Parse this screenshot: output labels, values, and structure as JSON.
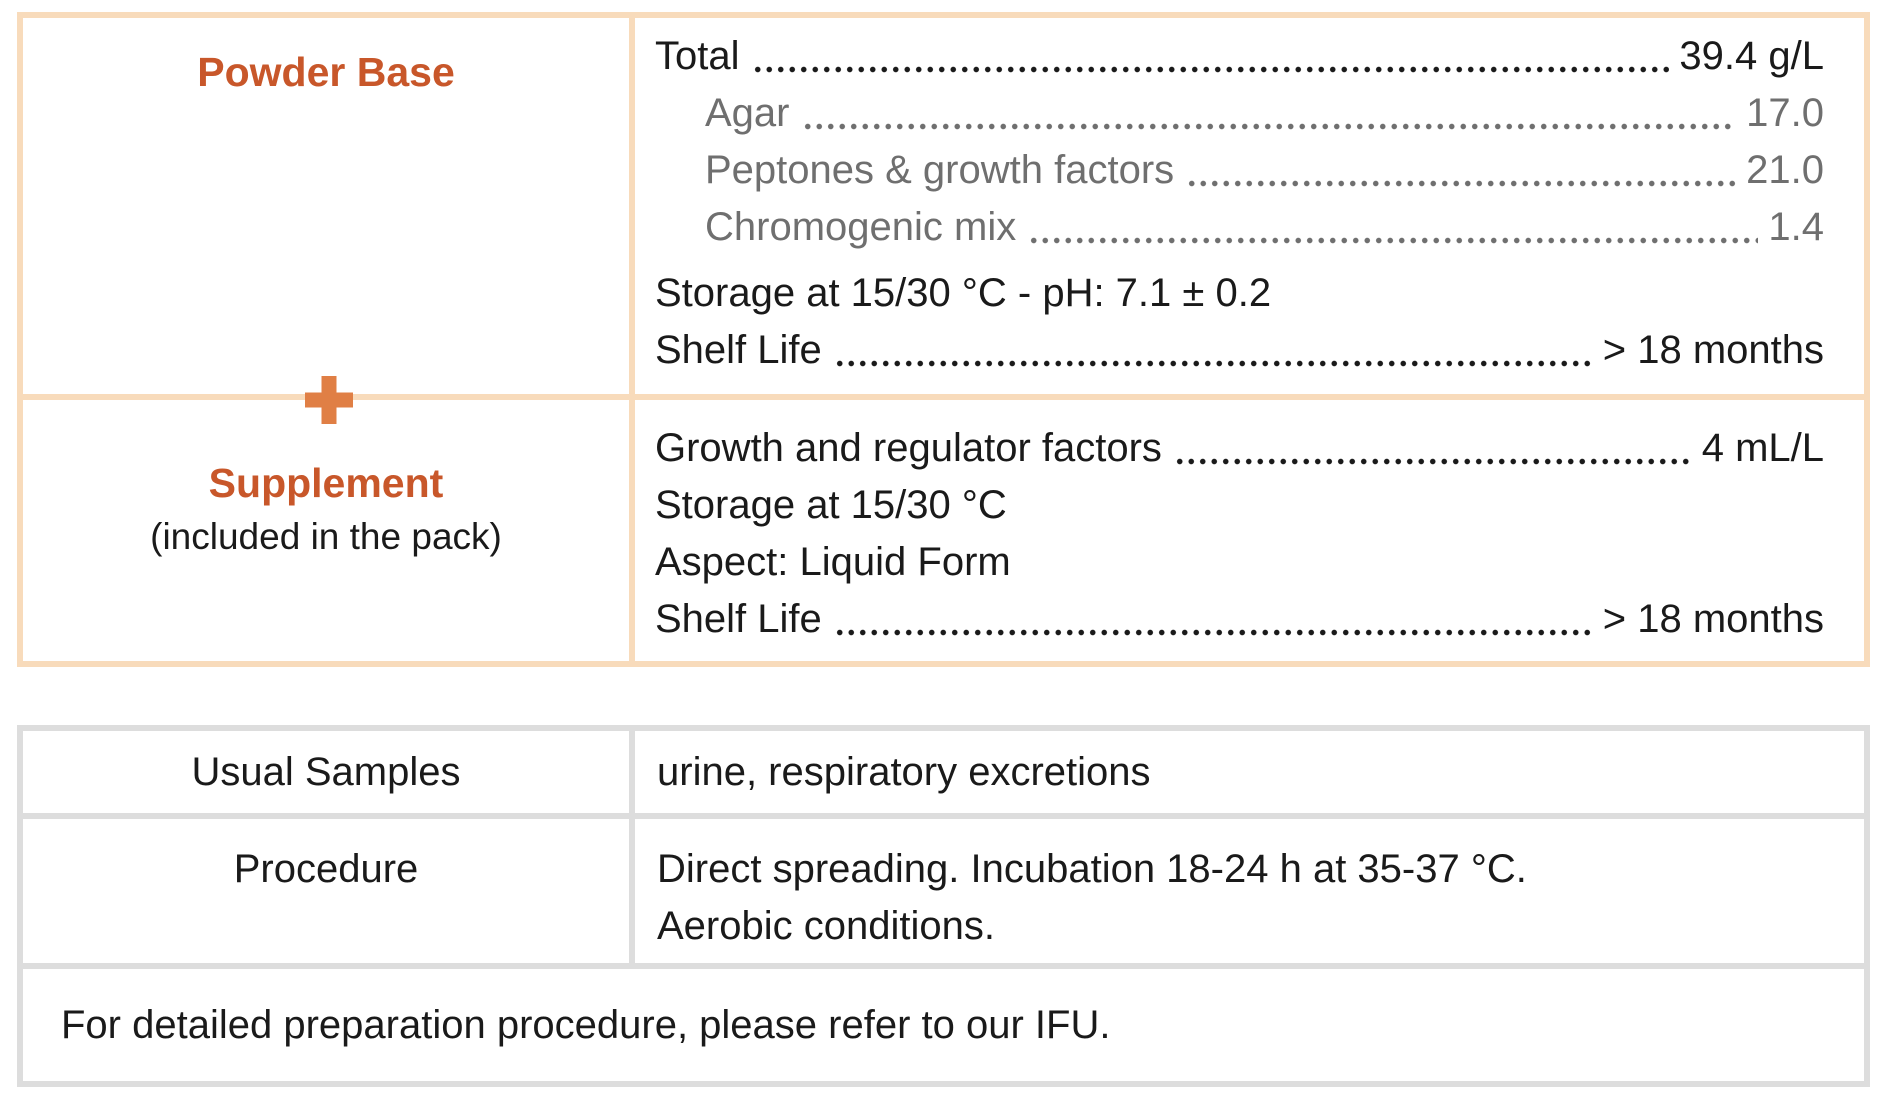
{
  "colors": {
    "accent_title": "#c8572a",
    "accent_plus": "#e07f45",
    "border_peach": "#f8dbbb",
    "border_gray": "#dddddd",
    "text_dark": "#1a1a1a",
    "text_gray": "#6f6f6f"
  },
  "icons": {
    "between_rows": "plus-icon"
  },
  "composition": {
    "powder_base": {
      "title": "Powder Base",
      "lines": [
        {
          "label": "Total",
          "value": "39.4 g/L",
          "leader": true,
          "tone": "dark",
          "indent": false
        },
        {
          "label": "Agar",
          "value": "17.0",
          "leader": true,
          "tone": "gray",
          "indent": true
        },
        {
          "label": "Peptones & growth factors",
          "value": "21.0",
          "leader": true,
          "tone": "gray",
          "indent": true
        },
        {
          "label": "Chromogenic mix",
          "value": "1.4",
          "leader": true,
          "tone": "gray",
          "indent": true
        },
        {
          "label": "Storage at 15/30 °C - pH: 7.1 ± 0.2",
          "value": "",
          "leader": false,
          "tone": "dark",
          "indent": false
        },
        {
          "label": "Shelf Life",
          "value": "> 18 months",
          "leader": true,
          "tone": "dark",
          "indent": false
        }
      ]
    },
    "plus_sign": "+",
    "supplement": {
      "title": "Supplement",
      "subtitle": "(included in the pack)",
      "lines": [
        {
          "label": "Growth and regulator factors",
          "value": "4 mL/L",
          "leader": true,
          "tone": "dark"
        },
        {
          "label": "Storage at 15/30 °C",
          "value": "",
          "leader": false,
          "tone": "dark"
        },
        {
          "label": "Aspect: Liquid Form",
          "value": "",
          "leader": false,
          "tone": "dark"
        },
        {
          "label": "Shelf Life",
          "value": "> 18 months",
          "leader": true,
          "tone": "dark"
        }
      ]
    }
  },
  "info": {
    "rows": [
      {
        "label": "Usual Samples",
        "value_lines": [
          "urine, respiratory excretions"
        ]
      },
      {
        "label": "Procedure",
        "value_lines": [
          "Direct spreading. Incubation 18-24 h at 35-37 °C.",
          "Aerobic conditions."
        ]
      }
    ],
    "note": "For detailed preparation procedure, please refer to our IFU."
  }
}
